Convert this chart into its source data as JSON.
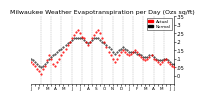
{
  "title": "Milwaukee Weather Evapotranspiration per Day (Ozs sq/ft)",
  "title_fontsize": 4.5,
  "bg_color": "#ffffff",
  "plot_bg_color": "#ffffff",
  "grid_color": "#aaaaaa",
  "red_color": "#ff0000",
  "black_color": "#000000",
  "ylim": [
    -0.05,
    0.35
  ],
  "yticks": [
    0.0,
    0.05,
    0.1,
    0.15,
    0.2,
    0.25,
    0.3,
    0.35
  ],
  "ytick_labels": [
    "0",
    ".05",
    ".1",
    ".15",
    ".2",
    ".25",
    ".3",
    ".35"
  ],
  "ylabel_fontsize": 3.5,
  "xlabel_fontsize": 3.0,
  "legend_label_actual": "Actual",
  "legend_label_normal": "Normal",
  "x_values": [
    0,
    1,
    2,
    3,
    4,
    5,
    6,
    7,
    8,
    9,
    10,
    11,
    12,
    13,
    14,
    15,
    16,
    17,
    18,
    19,
    20,
    21,
    22,
    23,
    24,
    25,
    26,
    27,
    28,
    29,
    30,
    31,
    32,
    33,
    34,
    35,
    36,
    37,
    38,
    39,
    40,
    41,
    42,
    43,
    44,
    45,
    46,
    47,
    48,
    49,
    50,
    51,
    52,
    53,
    54,
    55,
    56,
    57,
    58,
    59,
    60,
    61,
    62,
    63,
    64,
    65,
    66,
    67,
    68,
    69,
    70
  ],
  "red_y": [
    0.08,
    0.07,
    0.06,
    0.04,
    0.03,
    0.01,
    0.04,
    0.06,
    0.09,
    0.12,
    0.1,
    0.07,
    0.06,
    0.08,
    0.1,
    0.12,
    0.14,
    0.16,
    0.18,
    0.2,
    0.22,
    0.24,
    0.26,
    0.27,
    0.25,
    0.23,
    0.22,
    0.2,
    0.18,
    0.2,
    0.22,
    0.24,
    0.26,
    0.27,
    0.25,
    0.22,
    0.2,
    0.17,
    0.14,
    0.12,
    0.1,
    0.08,
    0.1,
    0.12,
    0.14,
    0.15,
    0.14,
    0.13,
    0.12,
    0.13,
    0.14,
    0.15,
    0.14,
    0.12,
    0.11,
    0.1,
    0.09,
    0.1,
    0.11,
    0.12,
    0.1,
    0.09,
    0.08,
    0.07,
    0.08,
    0.09,
    0.1,
    0.08,
    0.07,
    0.06,
    0.05
  ],
  "black_y": [
    0.1,
    0.09,
    0.08,
    0.07,
    0.06,
    0.05,
    0.06,
    0.07,
    0.08,
    0.1,
    0.11,
    0.12,
    0.13,
    0.14,
    0.15,
    0.16,
    0.17,
    0.18,
    0.19,
    0.2,
    0.21,
    0.22,
    0.22,
    0.22,
    0.22,
    0.22,
    0.21,
    0.2,
    0.19,
    0.2,
    0.21,
    0.22,
    0.22,
    0.22,
    0.21,
    0.2,
    0.19,
    0.18,
    0.17,
    0.16,
    0.14,
    0.13,
    0.14,
    0.15,
    0.16,
    0.17,
    0.16,
    0.15,
    0.14,
    0.14,
    0.14,
    0.14,
    0.13,
    0.13,
    0.12,
    0.11,
    0.11,
    0.11,
    0.12,
    0.12,
    0.11,
    0.1,
    0.09,
    0.09,
    0.09,
    0.1,
    0.1,
    0.09,
    0.08,
    0.07,
    0.07
  ],
  "vline_positions": [
    5,
    10,
    15,
    20,
    25,
    30,
    35,
    40,
    45,
    50,
    55,
    60,
    65
  ],
  "x_tick_positions": [
    0,
    2,
    4,
    6,
    8,
    10,
    12,
    14,
    16,
    18,
    20,
    22,
    24,
    26,
    28,
    30,
    32,
    34,
    36,
    38,
    40,
    42,
    44,
    46,
    48,
    50,
    52,
    54,
    56,
    58,
    60,
    62,
    64,
    66,
    68,
    70
  ],
  "x_tick_labels": [
    "J",
    "",
    "F",
    "",
    "M",
    "",
    "A",
    "",
    "M",
    "",
    "J",
    "",
    "J",
    "",
    "A",
    "",
    "S",
    "",
    "O",
    "",
    "N",
    "",
    "D",
    "",
    "J",
    "",
    "F",
    "",
    "M",
    "",
    "A",
    "",
    "M",
    "",
    "J",
    "J"
  ]
}
